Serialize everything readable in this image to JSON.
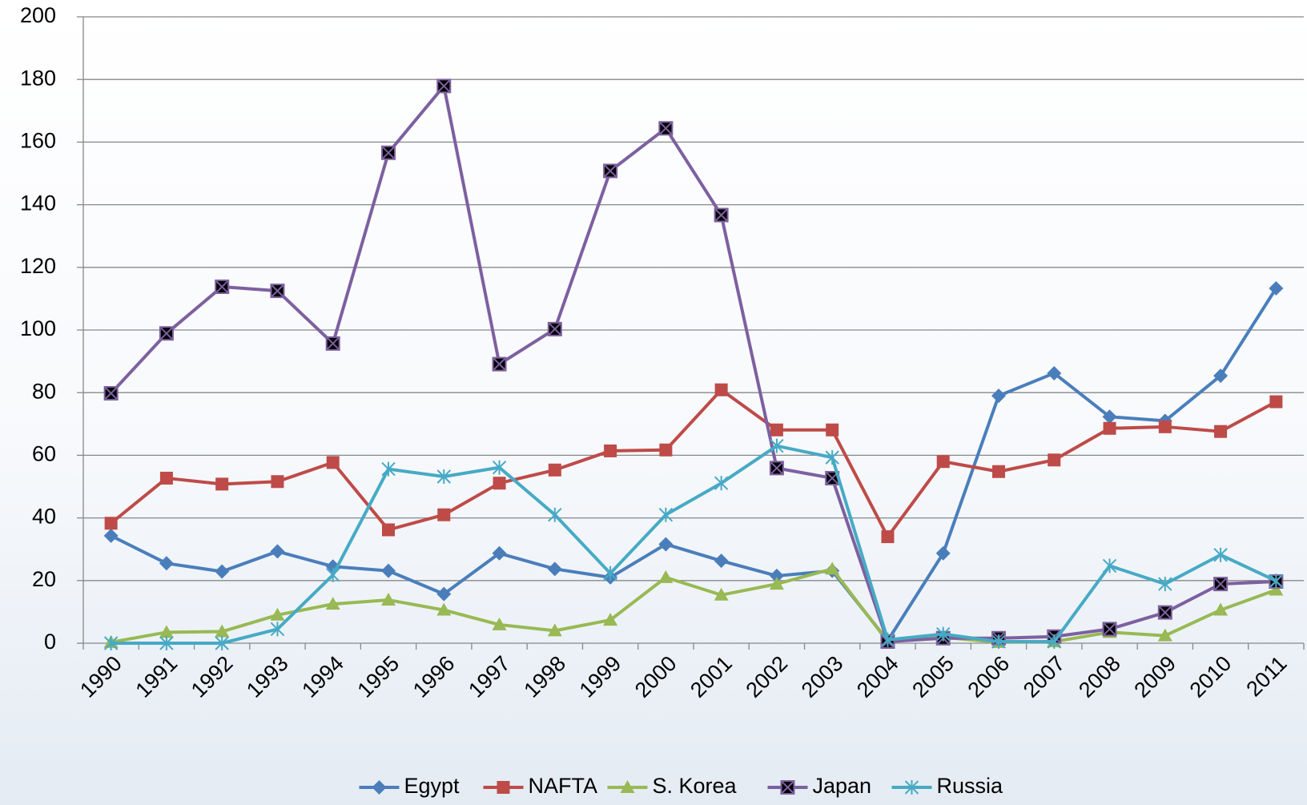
{
  "chart_data": {
    "type": "line",
    "categories": [
      "1990",
      "1991",
      "1992",
      "1993",
      "1994",
      "1995",
      "1996",
      "1997",
      "1998",
      "1999",
      "2000",
      "2001",
      "2002",
      "2003",
      "2004",
      "2005",
      "2006",
      "2007",
      "2008",
      "2009",
      "2010",
      "2011"
    ],
    "ylim": [
      0,
      200
    ],
    "yticks": [
      0,
      20,
      40,
      60,
      80,
      100,
      120,
      140,
      160,
      180,
      200
    ],
    "grid": true,
    "legend": "bottom",
    "series": [
      {
        "name": "Egypt",
        "color": "#4a7ebb",
        "marker": "diamond",
        "values": [
          34.3,
          25.5,
          22.9,
          29.3,
          24.5,
          23.1,
          15.7,
          28.7,
          23.7,
          21,
          31.6,
          26.3,
          21.5,
          23.1,
          0.8,
          28.7,
          79,
          86.2,
          72.3,
          71,
          85.4,
          113.3
        ]
      },
      {
        "name": "NAFTA",
        "color": "#be4b48",
        "marker": "square",
        "values": [
          38.3,
          52.7,
          50.8,
          51.6,
          57.7,
          36.2,
          41,
          51.1,
          55.3,
          61.4,
          61.7,
          80.9,
          68.1,
          68.1,
          34,
          58,
          54.8,
          58.5,
          68.6,
          69.1,
          67.6,
          77.1
        ]
      },
      {
        "name": "S. Korea",
        "color": "#98b954",
        "marker": "triangle",
        "values": [
          0.3,
          3.5,
          3.7,
          9,
          12.5,
          13.8,
          10.6,
          5.9,
          4,
          7.4,
          21,
          15.4,
          18.9,
          23.7,
          0.5,
          1.9,
          0.3,
          0.5,
          3.5,
          2.4,
          10.6,
          17
        ]
      },
      {
        "name": "Japan",
        "color": "#7d60a0",
        "marker": "xsquare",
        "values": [
          79.8,
          98.9,
          113.8,
          112.5,
          95.7,
          156.6,
          177.9,
          89.1,
          100.3,
          150.8,
          164.4,
          136.7,
          55.9,
          52.7,
          0.5,
          1.6,
          1.6,
          2.1,
          4.5,
          9.8,
          18.9,
          19.7
        ]
      },
      {
        "name": "Russia",
        "color": "#46aac5",
        "marker": "star",
        "values": [
          0,
          0,
          0,
          4.5,
          21.8,
          55.6,
          53.2,
          56.1,
          41,
          22.3,
          41,
          51.1,
          63,
          59.3,
          1.1,
          2.9,
          0.5,
          0.5,
          24.7,
          18.9,
          28.2,
          19.9
        ]
      }
    ]
  }
}
